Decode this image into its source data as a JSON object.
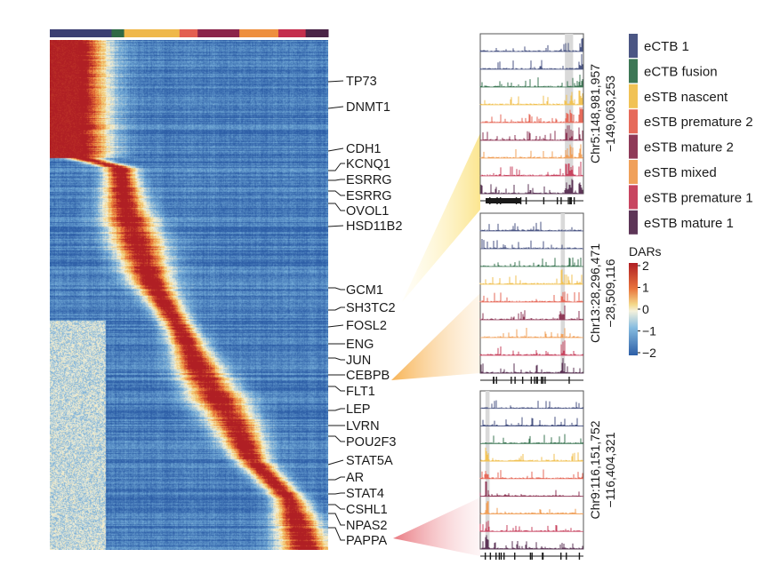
{
  "chart_data": {
    "type": "heatmap",
    "title": "",
    "row_labels": [
      "TP73",
      "DNMT1",
      "CDH1",
      "KCNQ1",
      "ESRRG",
      "ESRRG",
      "OVOL1",
      "HSD11B2",
      "GCM1",
      "SH3TC2",
      "FOSL2",
      "ENG",
      "JUN",
      "CEBPB",
      "FLT1",
      "LEP",
      "LVRN",
      "POU2F3",
      "STAT5A",
      "AR",
      "STAT4",
      "CSHL1",
      "NPAS2",
      "PAPPA"
    ],
    "column_groups": [
      {
        "name": "eCTB 1",
        "color": "#3b3f72",
        "width": 0.222
      },
      {
        "name": "eCTB fusion",
        "color": "#2f6a45",
        "width": 0.045
      },
      {
        "name": "eSTB nascent",
        "color": "#efb84a",
        "width": 0.199
      },
      {
        "name": "eSTB premature 2",
        "color": "#e35f50",
        "width": 0.065
      },
      {
        "name": "eSTB mature 2",
        "color": "#8b2449",
        "width": 0.15
      },
      {
        "name": "eSTB mixed",
        "color": "#ee8f3e",
        "width": 0.14
      },
      {
        "name": "eSTB premature 1",
        "color": "#c42e4d",
        "width": 0.098
      },
      {
        "name": "eSTB mature 1",
        "color": "#4a2346",
        "width": 0.081
      }
    ],
    "legend": [
      {
        "label": "eCTB 1",
        "color": "#4b5684"
      },
      {
        "label": "eCTB fusion",
        "color": "#3d7755"
      },
      {
        "label": "eSTB nascent",
        "color": "#f1c255"
      },
      {
        "label": "eSTB premature 2",
        "color": "#e66a5a"
      },
      {
        "label": "eSTB mature 2",
        "color": "#8f3a58"
      },
      {
        "label": "eSTB mixed",
        "color": "#f0a05a"
      },
      {
        "label": "eSTB premature 1",
        "color": "#c84560"
      },
      {
        "label": "eSTB mature 1",
        "color": "#5d3557"
      }
    ],
    "colorbar": {
      "title": "DARs",
      "range": [
        -2,
        2
      ],
      "ticks": [
        "2",
        "1",
        "0",
        "−1",
        "−2"
      ],
      "colors": [
        "#b01f24",
        "#f2c66a",
        "#f6f2d8",
        "#74acd8",
        "#2d5ea7"
      ]
    },
    "tracks": [
      {
        "label_line1": "Chr5:148,981,957",
        "label_line2": "−149,063,253",
        "gene": "HSD11B2 region",
        "highlight": [
          0.82,
          0.9
        ]
      },
      {
        "label_line1": "Chr13:28,296,471",
        "label_line2": "−28,509,116",
        "gene": "FLT1 region",
        "highlight": [
          0.78,
          0.82
        ]
      },
      {
        "label_line1": "Chr9:116,151,752",
        "label_line2": "−116,404,321",
        "gene": "PAPPA region",
        "highlight": [
          0.05,
          0.09
        ]
      }
    ],
    "track_row_colors": [
      "#4b5684",
      "#4b5684",
      "#3d7755",
      "#f1c255",
      "#e66a5a",
      "#8f3a58",
      "#f0a05a",
      "#c84560",
      "#5d3557"
    ]
  }
}
